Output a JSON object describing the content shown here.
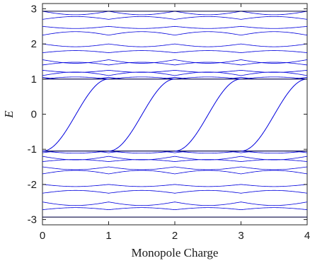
{
  "chart_data": {
    "type": "line",
    "title": "",
    "xlabel": "Monopole Charge",
    "ylabel": "E",
    "xlim": [
      0,
      4
    ],
    "ylim": [
      -3.15,
      3.15
    ],
    "xticks": [
      0,
      1,
      2,
      3,
      4
    ],
    "yticks": [
      3,
      2,
      1,
      0,
      -1,
      -2,
      -3
    ],
    "ytick_labels": [
      "3",
      "2",
      "1",
      "0",
      "-1",
      "-2",
      "-3"
    ],
    "grid": false,
    "legend": "none",
    "colors": {
      "spectrum": "#0000dd",
      "axes": "#262626",
      "background": "#ffffff"
    },
    "spectral_flow": {
      "description_free": true,
      "start_x": [
        0,
        1,
        2,
        3
      ],
      "end_x": [
        1,
        2,
        3,
        4
      ],
      "start_e": -1.05,
      "end_e": 1.0
    },
    "upper_band": {
      "range": [
        1.0,
        2.93
      ],
      "levels_at_integer_charge": [
        1.0,
        1.05,
        1.1,
        1.25,
        1.4,
        1.55,
        1.75,
        2.0,
        2.25,
        2.5,
        2.7,
        2.93
      ]
    },
    "lower_band": {
      "range": [
        -2.93,
        -1.05
      ],
      "levels_at_integer_charge": [
        -1.05,
        -1.1,
        -1.2,
        -1.35,
        -1.5,
        -1.7,
        -2.0,
        -2.25,
        -2.5,
        -2.72,
        -2.93
      ]
    }
  }
}
